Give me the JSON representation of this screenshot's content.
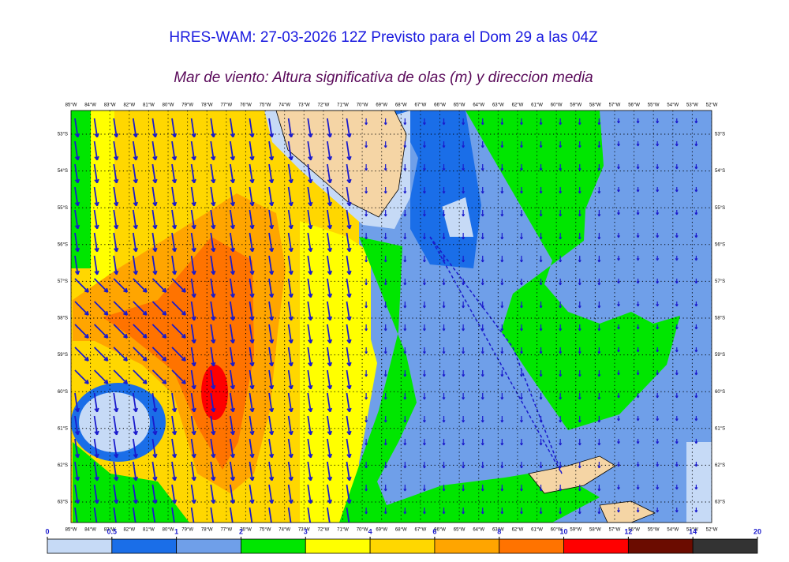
{
  "header": {
    "title": "HRES-WAM: 27-03-2026 12Z Previsto para el Dom 29 a las 04Z",
    "subtitle": "Mar de viento: Altura significativa de olas (m) y direccion media"
  },
  "map": {
    "longitudes": [
      "85°W",
      "84°W",
      "83°W",
      "82°W",
      "81°W",
      "80°W",
      "79°W",
      "78°W",
      "77°W",
      "76°W",
      "75°W",
      "74°W",
      "73°W",
      "72°W",
      "71°W",
      "70°W",
      "69°W",
      "68°W",
      "67°W",
      "66°W",
      "65°W",
      "64°W",
      "63°W",
      "62°W",
      "61°W",
      "60°W",
      "59°W",
      "58°W",
      "57°W",
      "56°W",
      "55°W",
      "54°W",
      "53°W",
      "52°W"
    ],
    "latitudes": [
      "53°S",
      "54°S",
      "55°S",
      "56°S",
      "57°S",
      "58°S",
      "59°S",
      "60°S",
      "61°S",
      "62°S",
      "63°S"
    ]
  },
  "legend": {
    "ticks": [
      0,
      0.5,
      1,
      2,
      3,
      4,
      6,
      8,
      10,
      12,
      14,
      20
    ],
    "colors": [
      "#c6daf6",
      "#1a6ee8",
      "#6f9fe9",
      "#00e600",
      "#ffff00",
      "#ffd700",
      "#ffa500",
      "#ff7300",
      "#ff0000",
      "#6b0c00",
      "#333333"
    ]
  }
}
